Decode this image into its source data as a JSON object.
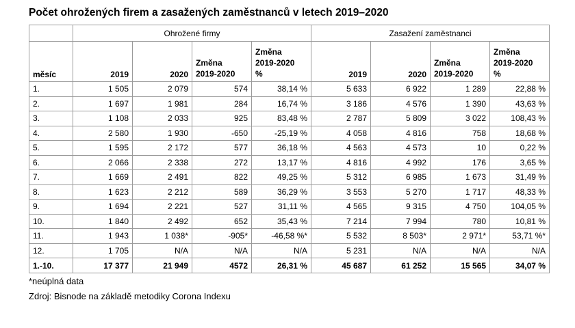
{
  "title": "Počet ohrožených firem a zasažených zaměstnanců v letech 2019–2020",
  "groups": {
    "firms": "Ohrožené firmy",
    "employees": "Zasažení zaměstnanci"
  },
  "columns": {
    "month": "měsíc",
    "y2019": "2019",
    "y2020": "2020",
    "change": "Změna\n2019-2020",
    "change_pct": "Změna\n2019-2020\n%"
  },
  "rows": [
    [
      "1.",
      "1 505",
      "2 079",
      "574",
      "38,14 %",
      "5 633",
      "6 922",
      "1 289",
      "22,88 %"
    ],
    [
      "2.",
      "1 697",
      "1 981",
      "284",
      "16,74 %",
      "3 186",
      "4 576",
      "1 390",
      "43,63 %"
    ],
    [
      "3.",
      "1 108",
      "2 033",
      "925",
      "83,48 %",
      "2 787",
      "5 809",
      "3 022",
      "108,43 %"
    ],
    [
      "4.",
      "2 580",
      "1 930",
      "-650",
      "-25,19 %",
      "4 058",
      "4 816",
      "758",
      "18,68 %"
    ],
    [
      "5.",
      "1 595",
      "2 172",
      "577",
      "36,18 %",
      "4 563",
      "4 573",
      "10",
      "0,22 %"
    ],
    [
      "6.",
      "2 066",
      "2 338",
      "272",
      "13,17 %",
      "4 816",
      "4 992",
      "176",
      "3,65 %"
    ],
    [
      "7.",
      "1 669",
      "2 491",
      "822",
      "49,25 %",
      "5 312",
      "6 985",
      "1 673",
      "31,49 %"
    ],
    [
      "8.",
      "1 623",
      "2 212",
      "589",
      "36,29 %",
      "3 553",
      "5 270",
      "1 717",
      "48,33 %"
    ],
    [
      "9.",
      "1 694",
      "2 221",
      "527",
      "31,11 %",
      "4 565",
      "9 315",
      "4 750",
      "104,05 %"
    ],
    [
      "10.",
      "1 840",
      "2 492",
      "652",
      "35,43 %",
      "7 214",
      "7 994",
      "780",
      "10,81 %"
    ],
    [
      "11.",
      "1 943",
      "1 038*",
      "-905*",
      "-46,58 %*",
      "5 532",
      "8 503*",
      "2 971*",
      "53,71 %*"
    ],
    [
      "12.",
      "1 705",
      "N/A",
      "N/A",
      "N/A",
      "5 231",
      "N/A",
      "N/A",
      "N/A"
    ]
  ],
  "total": [
    "1.-10.",
    "17 377",
    "21 949",
    "4572",
    "26,31 %",
    "45 687",
    "61 252",
    "15 565",
    "34,07 %"
  ],
  "footnote": "*neúplná data",
  "source": "Zdroj: Bisnode na základě metodiky Corona Indexu"
}
